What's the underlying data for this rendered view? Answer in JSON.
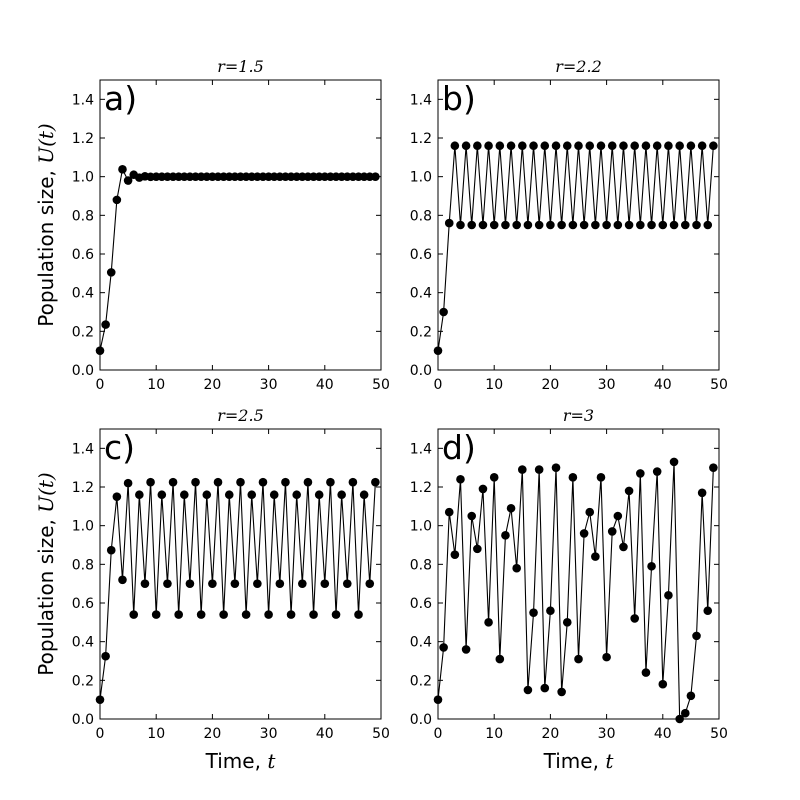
{
  "chart_data": [
    {
      "type": "line",
      "panel_label": "a)",
      "title": "r=1.5",
      "ylabel": "Population size, U(t)",
      "xlabel": "",
      "xlim": [
        0,
        50
      ],
      "ylim": [
        0,
        1.5
      ],
      "xticks": [
        "0",
        "10",
        "20",
        "30",
        "40",
        "50"
      ],
      "yticks": [
        "0.0",
        "0.2",
        "0.4",
        "0.6",
        "0.8",
        "1.0",
        "1.2",
        "1.4"
      ],
      "marker": "circle",
      "color": "#000000",
      "x": [
        0,
        1,
        2,
        3,
        4,
        5,
        6,
        7,
        8,
        9,
        10,
        11,
        12,
        13,
        14,
        15,
        16,
        17,
        18,
        19,
        20,
        21,
        22,
        23,
        24,
        25,
        26,
        27,
        28,
        29,
        30,
        31,
        32,
        33,
        34,
        35,
        36,
        37,
        38,
        39,
        40,
        41,
        42,
        43,
        44,
        45,
        46,
        47,
        48,
        49
      ],
      "y": [
        0.1,
        0.235,
        0.505,
        0.88,
        1.038,
        0.98,
        1.01,
        0.995,
        1.002,
        0.999,
        1.0,
        1.0,
        1.0,
        1.0,
        1.0,
        1.0,
        1.0,
        1.0,
        1.0,
        1.0,
        1.0,
        1.0,
        1.0,
        1.0,
        1.0,
        1.0,
        1.0,
        1.0,
        1.0,
        1.0,
        1.0,
        1.0,
        1.0,
        1.0,
        1.0,
        1.0,
        1.0,
        1.0,
        1.0,
        1.0,
        1.0,
        1.0,
        1.0,
        1.0,
        1.0,
        1.0,
        1.0,
        1.0,
        1.0,
        1.0
      ]
    },
    {
      "type": "line",
      "panel_label": "b)",
      "title": "r=2.2",
      "ylabel": "",
      "xlabel": "",
      "xlim": [
        0,
        50
      ],
      "ylim": [
        0,
        1.5
      ],
      "xticks": [
        "0",
        "10",
        "20",
        "30",
        "40",
        "50"
      ],
      "yticks": [
        "0.0",
        "0.2",
        "0.4",
        "0.6",
        "0.8",
        "1.0",
        "1.2",
        "1.4"
      ],
      "marker": "circle",
      "color": "#000000",
      "x": [
        0,
        1,
        2,
        3,
        4,
        5,
        6,
        7,
        8,
        9,
        10,
        11,
        12,
        13,
        14,
        15,
        16,
        17,
        18,
        19,
        20,
        21,
        22,
        23,
        24,
        25,
        26,
        27,
        28,
        29,
        30,
        31,
        32,
        33,
        34,
        35,
        36,
        37,
        38,
        39,
        40,
        41,
        42,
        43,
        44,
        45,
        46,
        47,
        48,
        49
      ],
      "y": [
        0.1,
        0.3,
        0.76,
        1.16,
        0.75,
        1.16,
        0.75,
        1.16,
        0.75,
        1.16,
        0.75,
        1.16,
        0.75,
        1.16,
        0.75,
        1.16,
        0.75,
        1.16,
        0.75,
        1.16,
        0.75,
        1.16,
        0.75,
        1.16,
        0.75,
        1.16,
        0.75,
        1.16,
        0.75,
        1.16,
        0.75,
        1.16,
        0.75,
        1.16,
        0.75,
        1.16,
        0.75,
        1.16,
        0.75,
        1.16,
        0.75,
        1.16,
        0.75,
        1.16,
        0.75,
        1.16,
        0.75,
        1.16,
        0.75,
        1.16
      ]
    },
    {
      "type": "line",
      "panel_label": "c)",
      "title": "r=2.5",
      "ylabel": "Population size, U(t)",
      "xlabel": "Time, t",
      "xlim": [
        0,
        50
      ],
      "ylim": [
        0,
        1.5
      ],
      "xticks": [
        "0",
        "10",
        "20",
        "30",
        "40",
        "50"
      ],
      "yticks": [
        "0.0",
        "0.2",
        "0.4",
        "0.6",
        "0.8",
        "1.0",
        "1.2",
        "1.4"
      ],
      "marker": "circle",
      "color": "#000000",
      "x": [
        0,
        1,
        2,
        3,
        4,
        5,
        6,
        7,
        8,
        9,
        10,
        11,
        12,
        13,
        14,
        15,
        16,
        17,
        18,
        19,
        20,
        21,
        22,
        23,
        24,
        25,
        26,
        27,
        28,
        29,
        30,
        31,
        32,
        33,
        34,
        35,
        36,
        37,
        38,
        39,
        40,
        41,
        42,
        43,
        44,
        45,
        46,
        47,
        48,
        49
      ],
      "y": [
        0.1,
        0.325,
        0.873,
        1.15,
        0.72,
        1.22,
        0.54,
        1.16,
        0.7,
        1.225,
        0.54,
        1.16,
        0.7,
        1.225,
        0.54,
        1.16,
        0.7,
        1.225,
        0.54,
        1.16,
        0.7,
        1.225,
        0.54,
        1.16,
        0.7,
        1.225,
        0.54,
        1.16,
        0.7,
        1.225,
        0.54,
        1.16,
        0.7,
        1.225,
        0.54,
        1.16,
        0.7,
        1.225,
        0.54,
        1.16,
        0.7,
        1.225,
        0.54,
        1.16,
        0.7,
        1.225,
        0.54,
        1.16,
        0.7,
        1.225
      ]
    },
    {
      "type": "line",
      "panel_label": "d)",
      "title": "r=3",
      "ylabel": "",
      "xlabel": "Time, t",
      "xlim": [
        0,
        50
      ],
      "ylim": [
        0,
        1.5
      ],
      "xticks": [
        "0",
        "10",
        "20",
        "30",
        "40",
        "50"
      ],
      "yticks": [
        "0.0",
        "0.2",
        "0.4",
        "0.6",
        "0.8",
        "1.0",
        "1.2",
        "1.4"
      ],
      "marker": "circle",
      "color": "#000000",
      "x": [
        0,
        1,
        2,
        3,
        4,
        5,
        6,
        7,
        8,
        9,
        10,
        11,
        12,
        13,
        14,
        15,
        16,
        17,
        18,
        19,
        20,
        21,
        22,
        23,
        24,
        25,
        26,
        27,
        28,
        29,
        30,
        31,
        32,
        33,
        34,
        35,
        36,
        37,
        38,
        39,
        40,
        41,
        42,
        43,
        44,
        45,
        46,
        47,
        48,
        49
      ],
      "y": [
        0.1,
        0.37,
        1.07,
        0.85,
        1.24,
        0.36,
        1.05,
        0.88,
        1.19,
        0.5,
        1.25,
        0.31,
        0.95,
        1.09,
        0.78,
        1.29,
        0.15,
        0.55,
        1.29,
        0.16,
        0.56,
        1.3,
        0.14,
        0.5,
        1.25,
        0.31,
        0.96,
        1.07,
        0.84,
        1.25,
        0.32,
        0.97,
        1.05,
        0.89,
        1.18,
        0.52,
        1.27,
        0.24,
        0.79,
        1.28,
        0.18,
        0.64,
        1.33,
        0.0,
        0.03,
        0.12,
        0.43,
        1.17,
        0.56,
        1.3
      ]
    }
  ]
}
